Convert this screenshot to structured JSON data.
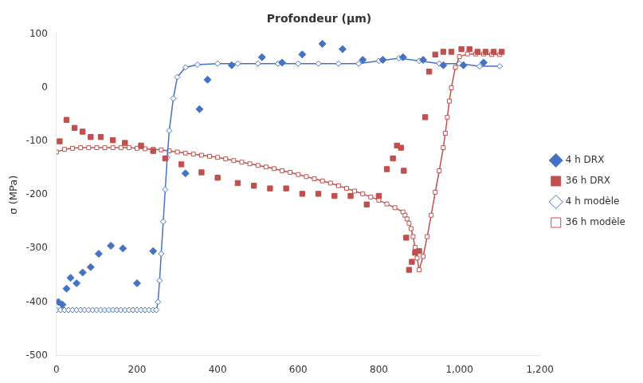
{
  "chart_data": {
    "type": "line",
    "title": "Profondeur (μm)",
    "ylabel": "σ (MPa)",
    "xlim": [
      0,
      1200
    ],
    "ylim": [
      -500,
      100
    ],
    "xticks": [
      0,
      200,
      400,
      600,
      800,
      1000,
      1200
    ],
    "yticks": [
      -500,
      -400,
      -300,
      -200,
      -100,
      0,
      100
    ],
    "grid": false,
    "legend": "right",
    "series": [
      {
        "name": "4 h modèle",
        "type": "line",
        "marker": "diamond",
        "color": "#4472C4",
        "x": [
          0,
          10,
          20,
          30,
          40,
          50,
          60,
          70,
          80,
          90,
          100,
          110,
          120,
          130,
          140,
          150,
          160,
          170,
          180,
          190,
          200,
          210,
          220,
          230,
          240,
          248,
          252,
          256,
          260,
          265,
          270,
          275,
          280,
          290,
          300,
          320,
          350,
          400,
          450,
          500,
          550,
          600,
          650,
          700,
          750,
          800,
          850,
          900,
          950,
          1000,
          1050,
          1100
        ],
        "values": [
          -415,
          -415,
          -415,
          -415,
          -415,
          -415,
          -415,
          -415,
          -415,
          -415,
          -415,
          -415,
          -415,
          -415,
          -415,
          -415,
          -415,
          -415,
          -415,
          -415,
          -415,
          -415,
          -415,
          -415,
          -415,
          -415,
          -400,
          -360,
          -310,
          -250,
          -190,
          -130,
          -80,
          -20,
          20,
          38,
          43,
          45,
          45,
          45,
          45,
          45,
          45,
          45,
          45,
          50,
          55,
          50,
          45,
          45,
          40,
          40
        ]
      },
      {
        "name": "36 h modèle",
        "type": "line",
        "marker": "square",
        "color": "#C0504D",
        "x": [
          0,
          20,
          40,
          60,
          80,
          100,
          120,
          140,
          160,
          180,
          200,
          220,
          240,
          260,
          280,
          300,
          320,
          340,
          360,
          380,
          400,
          420,
          440,
          460,
          480,
          500,
          520,
          540,
          560,
          580,
          600,
          620,
          640,
          660,
          680,
          700,
          720,
          740,
          760,
          780,
          800,
          820,
          840,
          860,
          865,
          870,
          875,
          880,
          885,
          890,
          895,
          900,
          910,
          920,
          930,
          940,
          950,
          960,
          965,
          970,
          975,
          980,
          990,
          1000,
          1020,
          1040,
          1060,
          1080,
          1100
        ],
        "values": [
          -120,
          -115,
          -113,
          -112,
          -112,
          -112,
          -112,
          -112,
          -112,
          -112,
          -113,
          -114,
          -115,
          -116,
          -118,
          -120,
          -122,
          -124,
          -126,
          -128,
          -130,
          -133,
          -136,
          -139,
          -142,
          -145,
          -148,
          -151,
          -155,
          -158,
          -162,
          -166,
          -170,
          -174,
          -178,
          -183,
          -188,
          -193,
          -198,
          -204,
          -210,
          -217,
          -224,
          -232,
          -238,
          -245,
          -253,
          -263,
          -278,
          -298,
          -318,
          -340,
          -315,
          -278,
          -238,
          -195,
          -155,
          -112,
          -85,
          -55,
          -25,
          0,
          38,
          58,
          63,
          63,
          63,
          62,
          62
        ]
      },
      {
        "name": "4 h DRX",
        "type": "scatter",
        "marker": "diamond",
        "color": "#4472C4",
        "x": [
          5,
          15,
          25,
          35,
          50,
          65,
          85,
          105,
          135,
          165,
          200,
          240,
          320,
          355,
          375,
          435,
          510,
          560,
          610,
          660,
          710,
          760,
          810,
          860,
          910,
          960,
          1010,
          1060
        ],
        "values": [
          -400,
          -405,
          -375,
          -355,
          -365,
          -345,
          -335,
          -310,
          -295,
          -300,
          -365,
          -305,
          -160,
          -40,
          15,
          42,
          57,
          47,
          62,
          82,
          72,
          52,
          52,
          57,
          52,
          42,
          42,
          47
        ]
      },
      {
        "name": "36 h DRX",
        "type": "scatter",
        "marker": "square",
        "color": "#C0504D",
        "x": [
          8,
          25,
          45,
          65,
          85,
          110,
          140,
          170,
          210,
          240,
          270,
          310,
          360,
          400,
          450,
          490,
          530,
          570,
          610,
          650,
          690,
          730,
          770,
          800,
          820,
          835,
          845,
          855,
          862,
          868,
          875,
          882,
          890,
          900,
          915,
          925,
          940,
          960,
          980,
          1005,
          1025,
          1045,
          1065,
          1085,
          1105
        ],
        "values": [
          -100,
          -60,
          -75,
          -82,
          -92,
          -92,
          -98,
          -103,
          -108,
          -118,
          -132,
          -143,
          -158,
          -168,
          -178,
          -183,
          -188,
          -188,
          -198,
          -198,
          -202,
          -202,
          -218,
          -202,
          -152,
          -132,
          -108,
          -112,
          -155,
          -280,
          -340,
          -325,
          -308,
          -305,
          -55,
          30,
          62,
          67,
          67,
          72,
          72,
          67,
          67,
          67,
          67
        ]
      }
    ]
  }
}
